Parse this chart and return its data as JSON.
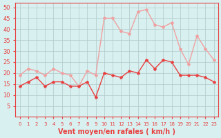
{
  "x": [
    0,
    1,
    2,
    3,
    4,
    5,
    6,
    7,
    8,
    9,
    10,
    11,
    12,
    13,
    14,
    15,
    16,
    17,
    18,
    19,
    20,
    21,
    22,
    23
  ],
  "wind_avg": [
    14,
    16,
    18,
    14,
    16,
    16,
    14,
    14,
    16,
    9,
    20,
    19,
    18,
    21,
    20,
    26,
    22,
    26,
    25,
    19,
    19,
    19,
    18,
    16
  ],
  "wind_gust": [
    19,
    22,
    21,
    19,
    22,
    20,
    19,
    14,
    21,
    19,
    45,
    45,
    39,
    38,
    48,
    49,
    42,
    41,
    43,
    31,
    24,
    37,
    31,
    26
  ],
  "bg_color": "#d8f0f0",
  "grid_color": "#b0c8c8",
  "line_avg_color": "#e84040",
  "line_gust_color": "#f0a0a0",
  "marker_avg_color": "#e84040",
  "marker_gust_color": "#f0a0a0",
  "xlabel": "Vent moyen/en rafales ( km/h )",
  "xlabel_color": "#e84040",
  "tick_color": "#e84040",
  "axis_label_color": "#e84040",
  "ylim": [
    0,
    52
  ],
  "yticks": [
    5,
    10,
    15,
    20,
    25,
    30,
    35,
    40,
    45,
    50
  ],
  "xlim": [
    -0.5,
    23.5
  ]
}
